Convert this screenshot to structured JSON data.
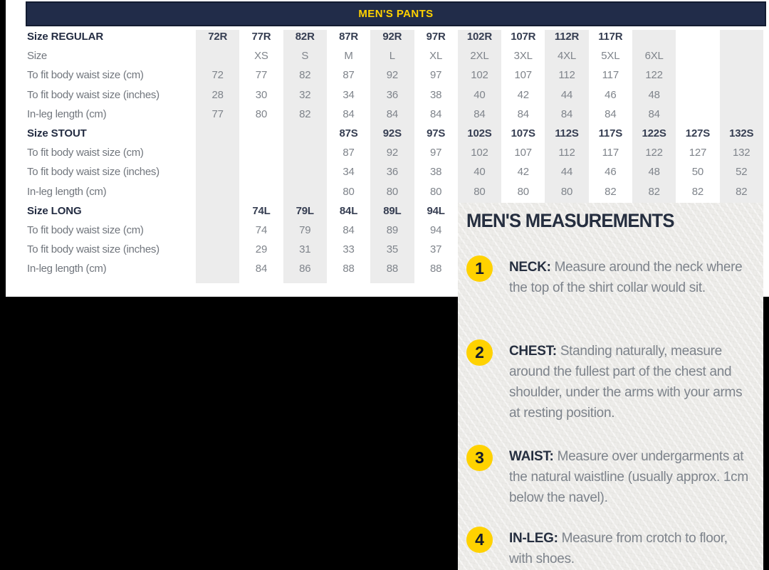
{
  "colors": {
    "page_background": "#000000",
    "header_navy": "#212C49",
    "accent_yellow": "#FFD200",
    "stripe_gray": "#ECECEC",
    "panel_paper": "#EDECE9",
    "dark_text": "#252E3F",
    "gray_text": "#7D838B"
  },
  "table": {
    "title": "MEN'S PANTS",
    "rows": [
      {
        "label": "Size REGULAR",
        "bold": true,
        "cells": [
          "72R",
          "77R",
          "82R",
          "87R",
          "92R",
          "97R",
          "102R",
          "107R",
          "112R",
          "117R",
          "",
          "",
          ""
        ]
      },
      {
        "label": "Size",
        "bold": false,
        "cells": [
          "",
          "XS",
          "S",
          "M",
          "L",
          "XL",
          "2XL",
          "3XL",
          "4XL",
          "5XL",
          "6XL",
          "",
          ""
        ]
      },
      {
        "label": "To fit body waist size (cm)",
        "bold": false,
        "cells": [
          "72",
          "77",
          "82",
          "87",
          "92",
          "97",
          "102",
          "107",
          "112",
          "117",
          "122",
          "",
          ""
        ]
      },
      {
        "label": "To fit body waist size (inches)",
        "bold": false,
        "cells": [
          "28",
          "30",
          "32",
          "34",
          "36",
          "38",
          "40",
          "42",
          "44",
          "46",
          "48",
          "",
          ""
        ]
      },
      {
        "label": "In-leg length (cm)",
        "bold": false,
        "cells": [
          "77",
          "80",
          "82",
          "84",
          "84",
          "84",
          "84",
          "84",
          "84",
          "84",
          "84",
          "",
          ""
        ]
      },
      {
        "label": "Size STOUT",
        "bold": true,
        "cells": [
          "",
          "",
          "",
          "87S",
          "92S",
          "97S",
          "102S",
          "107S",
          "112S",
          "117S",
          "122S",
          "127S",
          "132S"
        ]
      },
      {
        "label": "To fit body waist size (cm)",
        "bold": false,
        "cells": [
          "",
          "",
          "",
          "87",
          "92",
          "97",
          "102",
          "107",
          "112",
          "117",
          "122",
          "127",
          "132"
        ]
      },
      {
        "label": "To fit body waist size (inches)",
        "bold": false,
        "cells": [
          "",
          "",
          "",
          "34",
          "36",
          "38",
          "40",
          "42",
          "44",
          "46",
          "48",
          "50",
          "52"
        ]
      },
      {
        "label": "In-leg length (cm)",
        "bold": false,
        "cells": [
          "",
          "",
          "",
          "80",
          "80",
          "80",
          "80",
          "80",
          "80",
          "82",
          "82",
          "82",
          "82"
        ]
      },
      {
        "label": "Size LONG",
        "bold": true,
        "cells": [
          "",
          "74L",
          "79L",
          "84L",
          "89L",
          "94L",
          "",
          "",
          "",
          "",
          "",
          "",
          ""
        ]
      },
      {
        "label": "To fit body waist size (cm)",
        "bold": false,
        "cells": [
          "",
          "74",
          "79",
          "84",
          "89",
          "94",
          "",
          "",
          "",
          "",
          "",
          "",
          ""
        ]
      },
      {
        "label": "To fit body waist size (inches)",
        "bold": false,
        "cells": [
          "",
          "29",
          "31",
          "33",
          "35",
          "37",
          "",
          "",
          "",
          "",
          "",
          "",
          ""
        ]
      },
      {
        "label": "In-leg length (cm)",
        "bold": false,
        "cells": [
          "",
          "84",
          "86",
          "88",
          "88",
          "88",
          "",
          "",
          "",
          "",
          "",
          "",
          ""
        ]
      }
    ]
  },
  "measurements": {
    "title": "MEN'S MEASUREMENTS",
    "items": [
      {
        "num": "1",
        "term": "NECK:",
        "text": "Measure around the neck where the top of the shirt collar would sit."
      },
      {
        "num": "2",
        "term": "CHEST:",
        "text": "Standing naturally, measure around the fullest part of the chest and shoulder, under the arms with your arms at resting position."
      },
      {
        "num": "3",
        "term": "WAIST:",
        "text": "Measure over undergarments at the natural waistline (usually approx. 1cm below the navel)."
      },
      {
        "num": "4",
        "term": "IN-LEG:",
        "text": "Measure from crotch to floor, with shoes."
      }
    ]
  }
}
